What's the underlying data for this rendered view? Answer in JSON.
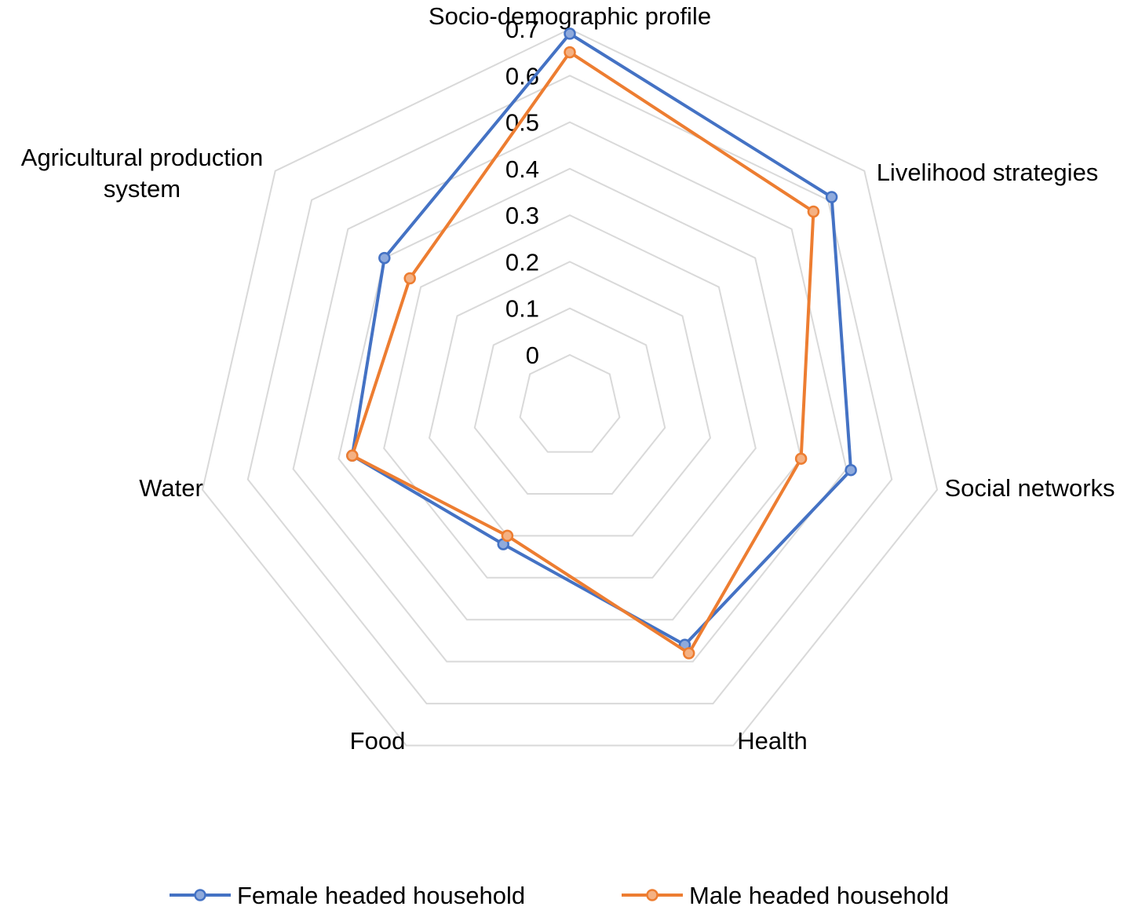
{
  "chart_data": {
    "type": "radar",
    "title": "",
    "axes": [
      "Socio-demographic profile",
      "Livelihood strategies",
      "Social networks",
      "Health",
      "Food",
      "Water",
      "Agricultural production system"
    ],
    "axis_label_lines": [
      [
        "Socio-demographic profile"
      ],
      [
        "Livelihood strategies"
      ],
      [
        "Social networks"
      ],
      [
        "Health"
      ],
      [
        "Food"
      ],
      [
        "Water"
      ],
      [
        "Agricultural production",
        "system"
      ]
    ],
    "radial_ticks": [
      "0",
      "0.1",
      "0.2",
      "0.3",
      "0.4",
      "0.5",
      "0.6",
      "0.7"
    ],
    "range": [
      0,
      0.7
    ],
    "series": [
      {
        "name": "Female headed household",
        "color": "#4472C4",
        "marker_fill": "#8FAADC",
        "values": [
          0.69,
          0.61,
          0.51,
          0.46,
          0.22,
          0.37,
          0.4
        ]
      },
      {
        "name": "Male headed household",
        "color": "#ED7D31",
        "marker_fill": "#F4B183",
        "values": [
          0.65,
          0.56,
          0.4,
          0.48,
          0.2,
          0.37,
          0.33
        ]
      }
    ],
    "grid": true,
    "grid_color": "#D9D9D9",
    "legend": "bottom"
  }
}
